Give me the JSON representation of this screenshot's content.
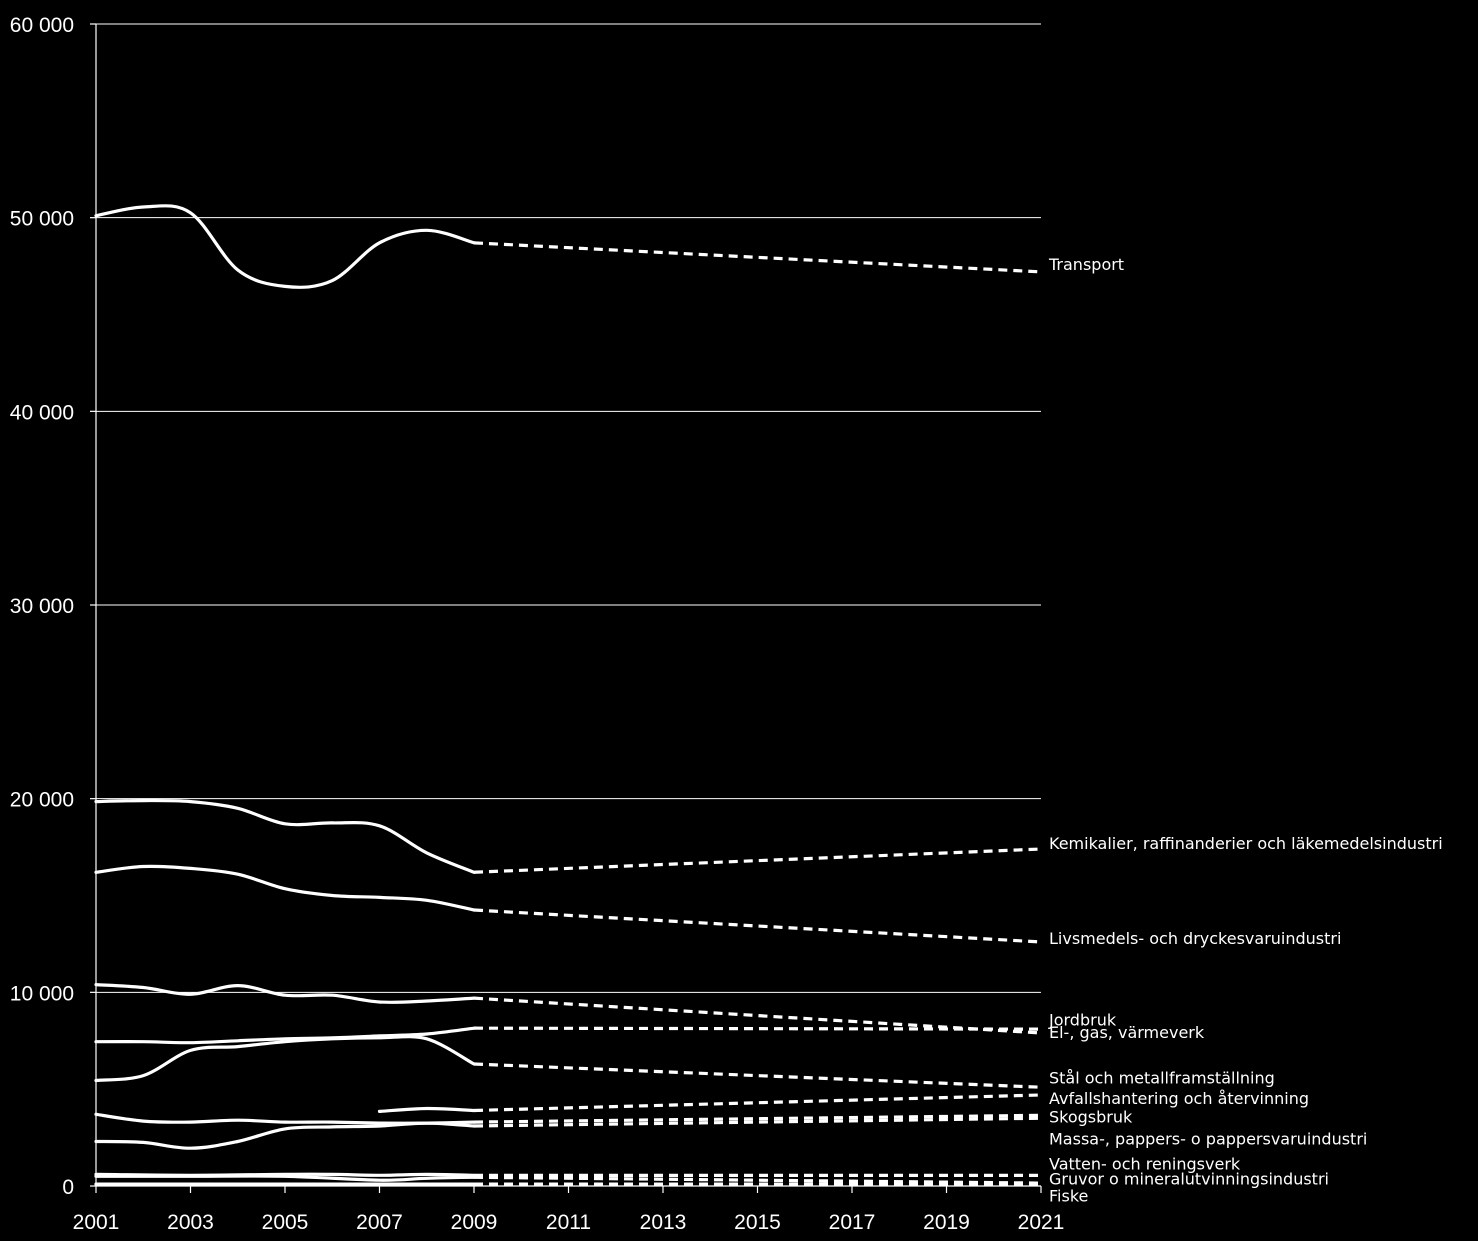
{
  "chart_data": {
    "type": "line",
    "title": "",
    "xlabel": "",
    "ylabel": "",
    "xlim": [
      2001,
      2021
    ],
    "ylim": [
      0,
      60000
    ],
    "grid": true,
    "colors": {
      "background": "#000000",
      "line": "#ffffff",
      "text": "#ffffff"
    },
    "y_ticks": [
      {
        "value": 0,
        "label": "0"
      },
      {
        "value": 10000,
        "label": "10 000"
      },
      {
        "value": 20000,
        "label": "20 000"
      },
      {
        "value": 30000,
        "label": "30 000"
      },
      {
        "value": 40000,
        "label": "40 000"
      },
      {
        "value": 50000,
        "label": "50 000"
      },
      {
        "value": 60000,
        "label": "60 000"
      }
    ],
    "x_ticks": [
      {
        "value": 2001,
        "label": "2001"
      },
      {
        "value": 2003,
        "label": "2003"
      },
      {
        "value": 2005,
        "label": "2005"
      },
      {
        "value": 2007,
        "label": "2007"
      },
      {
        "value": 2009,
        "label": "2009"
      },
      {
        "value": 2011,
        "label": "2011"
      },
      {
        "value": 2013,
        "label": "2013"
      },
      {
        "value": 2015,
        "label": "2015"
      },
      {
        "value": 2017,
        "label": "2017"
      },
      {
        "value": 2019,
        "label": "2019"
      },
      {
        "value": 2021,
        "label": "2021"
      }
    ],
    "series": [
      {
        "name": "Transport",
        "historical": [
          [
            2001,
            50100
          ],
          [
            2002,
            50550
          ],
          [
            2003,
            50250
          ],
          [
            2004,
            47300
          ],
          [
            2005,
            46450
          ],
          [
            2006,
            46750
          ],
          [
            2007,
            48700
          ],
          [
            2008,
            49350
          ],
          [
            2009,
            48700
          ]
        ],
        "forecast": [
          [
            2009,
            48700
          ],
          [
            2021,
            47200
          ]
        ],
        "label_value": 47600
      },
      {
        "name": "Kemikalier, raffinanderier och läkemedelsindustri",
        "historical": [
          [
            2001,
            19850
          ],
          [
            2002,
            19900
          ],
          [
            2003,
            19850
          ],
          [
            2004,
            19500
          ],
          [
            2005,
            18700
          ],
          [
            2006,
            18750
          ],
          [
            2007,
            18600
          ],
          [
            2008,
            17200
          ],
          [
            2009,
            16200
          ]
        ],
        "forecast": [
          [
            2009,
            16200
          ],
          [
            2021,
            17400
          ]
        ],
        "label_value": 17700
      },
      {
        "name": "Livsmedels- och dryckesvaruindustri",
        "historical": [
          [
            2001,
            16200
          ],
          [
            2002,
            16500
          ],
          [
            2003,
            16400
          ],
          [
            2004,
            16100
          ],
          [
            2005,
            15350
          ],
          [
            2006,
            15000
          ],
          [
            2007,
            14900
          ],
          [
            2008,
            14750
          ],
          [
            2009,
            14250
          ]
        ],
        "forecast": [
          [
            2009,
            14250
          ],
          [
            2021,
            12600
          ]
        ],
        "label_value": 12800
      },
      {
        "name": "Jordbruk",
        "historical": [
          [
            2001,
            10400
          ],
          [
            2002,
            10250
          ],
          [
            2003,
            9900
          ],
          [
            2004,
            10350
          ],
          [
            2005,
            9850
          ],
          [
            2006,
            9850
          ],
          [
            2007,
            9500
          ],
          [
            2008,
            9550
          ],
          [
            2009,
            9700
          ]
        ],
        "forecast": [
          [
            2009,
            9700
          ],
          [
            2021,
            7900
          ]
        ],
        "label_value": 8600
      },
      {
        "name": "El-, gas, värmeverk",
        "historical": [
          [
            2001,
            7450
          ],
          [
            2002,
            7450
          ],
          [
            2003,
            7400
          ],
          [
            2004,
            7500
          ],
          [
            2005,
            7600
          ],
          [
            2006,
            7650
          ],
          [
            2007,
            7750
          ],
          [
            2008,
            7850
          ],
          [
            2009,
            8150
          ]
        ],
        "forecast": [
          [
            2009,
            8150
          ],
          [
            2021,
            8100
          ]
        ],
        "label_value": 7950
      },
      {
        "name": "Stål och metallframställning",
        "historical": [
          [
            2001,
            5450
          ],
          [
            2002,
            5700
          ],
          [
            2003,
            7000
          ],
          [
            2004,
            7200
          ],
          [
            2005,
            7450
          ],
          [
            2006,
            7600
          ],
          [
            2007,
            7650
          ],
          [
            2008,
            7600
          ],
          [
            2009,
            6300
          ]
        ],
        "forecast": [
          [
            2009,
            6300
          ],
          [
            2021,
            5100
          ]
        ],
        "label_value": 5600
      },
      {
        "name": "Avfallshantering och återvinning",
        "historical": [
          [
            2007,
            3850
          ],
          [
            2008,
            4000
          ],
          [
            2009,
            3900
          ]
        ],
        "forecast": [
          [
            2009,
            3900
          ],
          [
            2021,
            4700
          ]
        ],
        "label_value": 4550
      },
      {
        "name": "Skogsbruk",
        "historical": [
          [
            2001,
            3700
          ],
          [
            2002,
            3350
          ],
          [
            2003,
            3300
          ],
          [
            2004,
            3400
          ],
          [
            2005,
            3300
          ],
          [
            2006,
            3300
          ],
          [
            2007,
            3250
          ],
          [
            2008,
            3250
          ],
          [
            2009,
            3300
          ]
        ],
        "forecast": [
          [
            2009,
            3300
          ],
          [
            2021,
            3650
          ]
        ],
        "label_value": 3600
      },
      {
        "name": "Massa-, pappers- o pappersvaruindustri",
        "historical": [
          [
            2001,
            2300
          ],
          [
            2002,
            2250
          ],
          [
            2003,
            1950
          ],
          [
            2004,
            2300
          ],
          [
            2005,
            2950
          ],
          [
            2006,
            3050
          ],
          [
            2007,
            3100
          ],
          [
            2008,
            3250
          ],
          [
            2009,
            3100
          ]
        ],
        "forecast": [
          [
            2009,
            3100
          ],
          [
            2021,
            3500
          ]
        ],
        "label_value": 2450
      },
      {
        "name": "Vatten- och reningsverk",
        "historical": [
          [
            2001,
            600
          ],
          [
            2003,
            550
          ],
          [
            2005,
            600
          ],
          [
            2006,
            600
          ],
          [
            2007,
            550
          ],
          [
            2008,
            600
          ],
          [
            2009,
            550
          ]
        ],
        "forecast": [
          [
            2009,
            550
          ],
          [
            2021,
            550
          ]
        ],
        "label_value": 1150
      },
      {
        "name": "Gruvor o mineralutvinningsindustri",
        "historical": [
          [
            2001,
            500
          ],
          [
            2003,
            500
          ],
          [
            2005,
            500
          ],
          [
            2007,
            300
          ],
          [
            2008,
            400
          ],
          [
            2009,
            450
          ]
        ],
        "forecast": [
          [
            2009,
            450
          ],
          [
            2021,
            150
          ]
        ],
        "label_value": 400
      },
      {
        "name": "Fiske",
        "historical": [
          [
            2001,
            100
          ],
          [
            2005,
            100
          ],
          [
            2009,
            100
          ]
        ],
        "forecast": [
          [
            2009,
            100
          ],
          [
            2021,
            100
          ]
        ],
        "label_value": -500
      }
    ]
  }
}
